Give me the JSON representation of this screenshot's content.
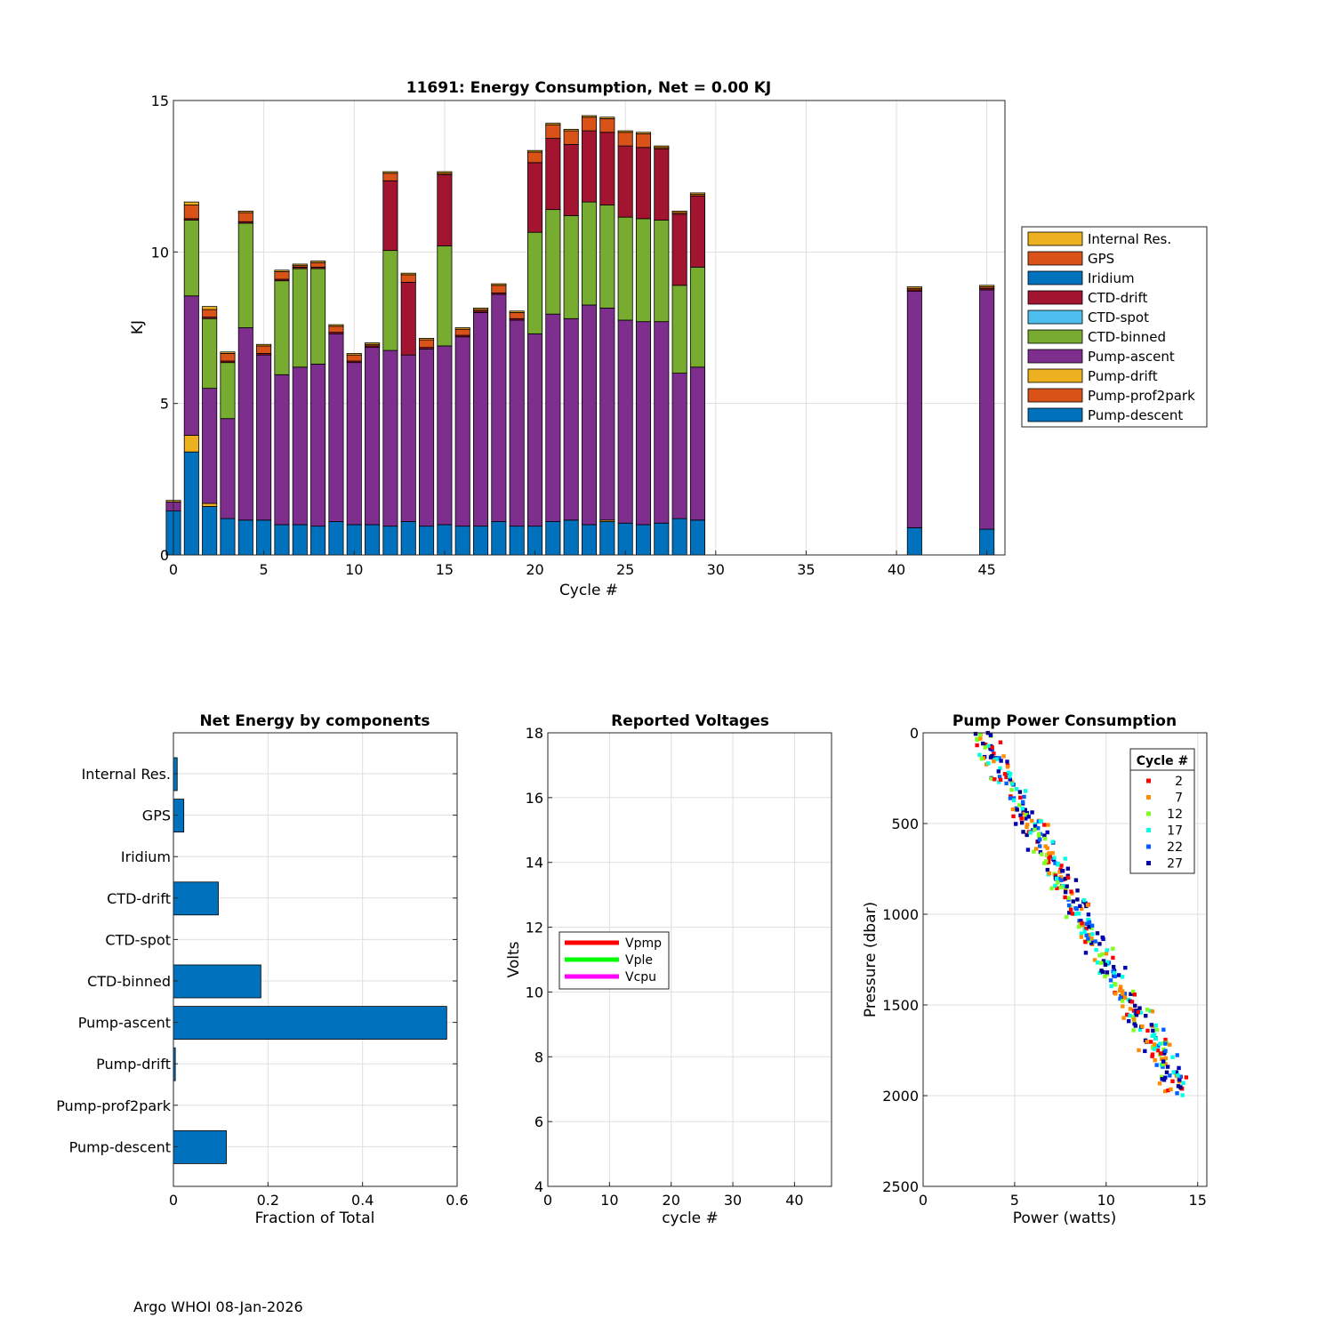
{
  "footer": "Argo WHOI 08-Jan-2026",
  "colors": {
    "Internal Res.": "#EDB120",
    "GPS": "#D95319",
    "Iridium": "#0072BD",
    "CTD-drift": "#A2142F",
    "CTD-spot": "#4DBEEE",
    "CTD-binned": "#77AC30",
    "Pump-ascent": "#7E2F8E",
    "Pump-drift": "#EDB120",
    "Pump-prof2park": "#D95319",
    "Pump-descent": "#0072BD",
    "hbar": "#0072BD",
    "Vpmp": "#FF0000",
    "Vple": "#00FF00",
    "Vcpu": "#FF00FF"
  },
  "chart_data": [
    {
      "id": "energy",
      "type": "bar",
      "stacked": true,
      "title": "11691: Energy Consumption,  Net =   0.00 KJ",
      "xlabel": "Cycle #",
      "ylabel": "KJ",
      "xlim": [
        0,
        46
      ],
      "ylim": [
        0,
        15
      ],
      "xticks": [
        0,
        5,
        10,
        15,
        20,
        25,
        30,
        35,
        40,
        45
      ],
      "yticks": [
        0,
        5,
        10,
        15
      ],
      "legend_order": [
        "Internal Res.",
        "GPS",
        "Iridium",
        "CTD-drift",
        "CTD-spot",
        "CTD-binned",
        "Pump-ascent",
        "Pump-drift",
        "Pump-prof2park",
        "Pump-descent"
      ],
      "stack_order": [
        "Pump-descent",
        "Pump-prof2park",
        "Pump-drift",
        "Pump-ascent",
        "CTD-binned",
        "CTD-spot",
        "CTD-drift",
        "Iridium",
        "GPS",
        "Internal Res."
      ],
      "cycles": [
        0,
        1,
        2,
        3,
        4,
        5,
        6,
        7,
        8,
        9,
        10,
        11,
        12,
        13,
        14,
        15,
        16,
        17,
        18,
        19,
        20,
        21,
        22,
        23,
        24,
        25,
        26,
        27,
        28,
        29,
        41,
        45
      ],
      "series": [
        {
          "name": "Pump-descent",
          "values": [
            1.45,
            3.4,
            1.6,
            1.2,
            1.15,
            1.15,
            1.0,
            1.0,
            0.95,
            1.1,
            1.0,
            1.0,
            0.95,
            1.1,
            0.95,
            1.0,
            0.95,
            0.95,
            1.1,
            0.95,
            0.95,
            1.1,
            1.15,
            1.0,
            1.1,
            1.05,
            1.0,
            1.05,
            1.2,
            1.15,
            0.9,
            0.85
          ]
        },
        {
          "name": "Pump-prof2park",
          "values": [
            0,
            0,
            0,
            0,
            0,
            0,
            0,
            0,
            0,
            0,
            0,
            0,
            0,
            0,
            0,
            0,
            0,
            0,
            0,
            0,
            0,
            0,
            0,
            0,
            0,
            0,
            0,
            0,
            0,
            0,
            0,
            0
          ]
        },
        {
          "name": "Pump-drift",
          "values": [
            0,
            0.55,
            0.1,
            0,
            0,
            0,
            0,
            0,
            0,
            0,
            0,
            0,
            0,
            0,
            0,
            0,
            0,
            0,
            0,
            0,
            0,
            0,
            0,
            0,
            0.05,
            0,
            0,
            0,
            0,
            0,
            0,
            0
          ]
        },
        {
          "name": "Pump-ascent",
          "values": [
            0.3,
            4.6,
            3.8,
            3.3,
            6.35,
            5.45,
            4.95,
            5.2,
            5.35,
            6.2,
            5.35,
            5.85,
            5.8,
            5.5,
            5.85,
            5.9,
            6.25,
            7.05,
            7.5,
            6.8,
            6.35,
            6.85,
            6.65,
            7.25,
            7.0,
            6.7,
            6.7,
            6.65,
            4.8,
            5.05,
            7.8,
            7.9
          ]
        },
        {
          "name": "CTD-binned",
          "values": [
            0,
            2.5,
            2.3,
            1.85,
            3.45,
            0,
            3.1,
            3.25,
            3.15,
            0,
            0,
            0,
            3.3,
            0,
            0,
            3.3,
            0,
            0,
            0,
            0,
            3.35,
            3.45,
            3.4,
            3.4,
            3.4,
            3.4,
            3.4,
            3.35,
            2.9,
            3.3,
            0,
            0
          ]
        },
        {
          "name": "CTD-spot",
          "values": [
            0,
            0,
            0,
            0,
            0,
            0,
            0,
            0,
            0,
            0,
            0,
            0,
            0,
            0,
            0,
            0,
            0,
            0,
            0,
            0,
            0,
            0,
            0,
            0,
            0,
            0,
            0,
            0,
            0,
            0,
            0,
            0
          ]
        },
        {
          "name": "CTD-drift",
          "values": [
            0,
            0.05,
            0.05,
            0.05,
            0.05,
            0.05,
            0.05,
            0.05,
            0.05,
            0.05,
            0.05,
            0.05,
            2.3,
            2.4,
            0.05,
            2.35,
            0.05,
            0.05,
            0.05,
            0.05,
            2.3,
            2.35,
            2.35,
            2.35,
            2.4,
            2.35,
            2.35,
            2.35,
            2.35,
            2.35,
            0.05,
            0.05
          ]
        },
        {
          "name": "Iridium",
          "values": [
            0,
            0,
            0,
            0,
            0,
            0,
            0,
            0,
            0,
            0,
            0,
            0,
            0,
            0,
            0,
            0,
            0,
            0,
            0,
            0,
            0,
            0,
            0,
            0,
            0,
            0,
            0,
            0,
            0,
            0,
            0,
            0
          ]
        },
        {
          "name": "GPS",
          "values": [
            0,
            0.45,
            0.25,
            0.25,
            0.3,
            0.25,
            0.25,
            0.05,
            0.15,
            0.2,
            0.2,
            0.05,
            0.25,
            0.25,
            0.25,
            0.05,
            0.2,
            0.05,
            0.25,
            0.2,
            0.35,
            0.45,
            0.45,
            0.45,
            0.45,
            0.45,
            0.45,
            0.05,
            0.05,
            0.05,
            0.05,
            0.05
          ]
        },
        {
          "name": "Internal Res.",
          "values": [
            0.05,
            0.1,
            0.1,
            0.05,
            0.05,
            0.05,
            0.05,
            0.05,
            0.05,
            0.05,
            0.05,
            0.05,
            0.05,
            0.05,
            0.05,
            0.05,
            0.05,
            0.05,
            0.05,
            0.05,
            0.05,
            0.05,
            0.05,
            0.05,
            0.05,
            0.05,
            0.05,
            0.05,
            0.05,
            0.05,
            0.05,
            0.05
          ]
        }
      ]
    },
    {
      "id": "net",
      "type": "bar",
      "orientation": "horizontal",
      "title": "Net Energy by components",
      "xlabel": "Fraction of Total",
      "xlim": [
        0,
        0.6
      ],
      "xticks": [
        0,
        0.2,
        0.4,
        0.6
      ],
      "categories": [
        "Internal Res.",
        "GPS",
        "Iridium",
        "CTD-drift",
        "CTD-spot",
        "CTD-binned",
        "Pump-ascent",
        "Pump-drift",
        "Pump-prof2park",
        "Pump-descent"
      ],
      "values": [
        0.008,
        0.022,
        0,
        0.095,
        0,
        0.185,
        0.578,
        0.004,
        0,
        0.112
      ]
    },
    {
      "id": "volts",
      "type": "line",
      "title": "Reported Voltages",
      "xlabel": "cycle #",
      "ylabel": "Volts",
      "xlim": [
        0,
        46
      ],
      "ylim": [
        4,
        18
      ],
      "xticks": [
        0,
        10,
        20,
        30,
        40
      ],
      "yticks": [
        4,
        6,
        8,
        10,
        12,
        14,
        16,
        18
      ],
      "series": [
        {
          "name": "Vpmp",
          "values": []
        },
        {
          "name": "Vple",
          "values": []
        },
        {
          "name": "Vcpu",
          "values": []
        }
      ]
    },
    {
      "id": "pump",
      "type": "scatter",
      "title": "Pump Power Consumption",
      "xlabel": "Power (watts)",
      "ylabel": "Pressure (dbar)",
      "xlim": [
        0,
        15.5
      ],
      "ylim": [
        0,
        2500
      ],
      "y_reversed": true,
      "xticks": [
        0,
        5,
        10,
        15
      ],
      "yticks": [
        0,
        500,
        1000,
        1500,
        2000,
        2500
      ],
      "legend_title": "Cycle #",
      "legend": [
        {
          "label": "2",
          "color": "#FF0000"
        },
        {
          "label": "7",
          "color": "#FF8C00"
        },
        {
          "label": "12",
          "color": "#80FF20"
        },
        {
          "label": "17",
          "color": "#00FFE0"
        },
        {
          "label": "22",
          "color": "#0060FF"
        },
        {
          "label": "27",
          "color": "#0000B0"
        }
      ],
      "series_colors": [
        "#FF0000",
        "#FF8C00",
        "#80FF20",
        "#00FFE0",
        "#0060FF",
        "#0000B0",
        "#00008C"
      ],
      "trend": {
        "p0_power": 3.2,
        "p2000_power": 14.0,
        "pressure_max": 2000,
        "spread": 0.55,
        "seed": 11691,
        "points": 420
      }
    }
  ]
}
